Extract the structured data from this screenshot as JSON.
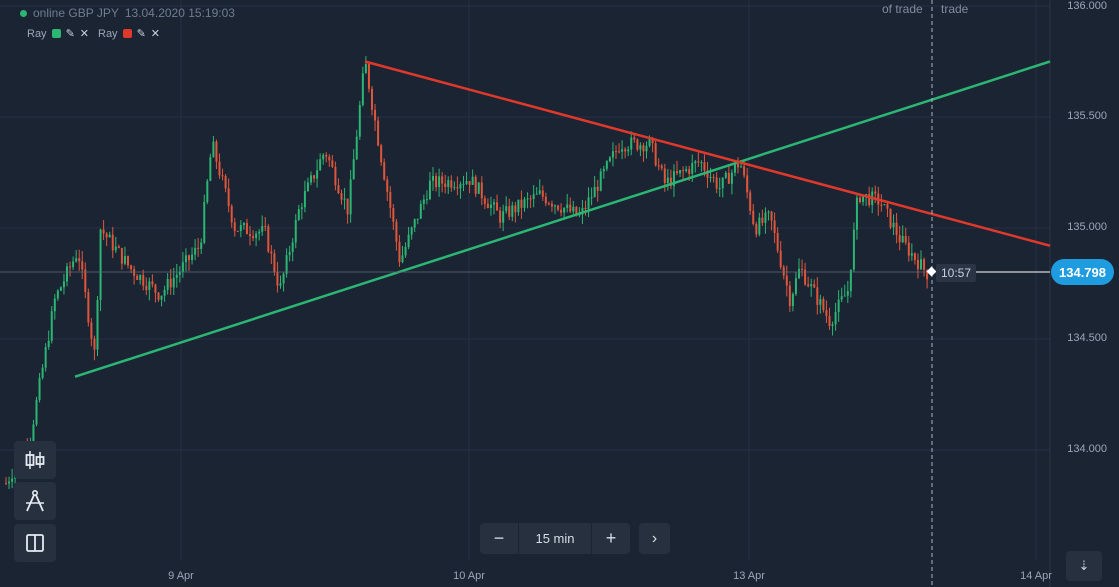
{
  "header": {
    "asset": "online GBP JPY",
    "datetime": "13.04.2020 15:19:03"
  },
  "drawings": [
    {
      "label": "Ray",
      "color": "#2bb673"
    },
    {
      "label": "Ray",
      "color": "#e0392b"
    }
  ],
  "trade_labels": {
    "left": "of trade",
    "right": "trade"
  },
  "y_axis": {
    "ticks": [
      "136.000",
      "135.500",
      "135.000",
      "134.500",
      "134.000"
    ]
  },
  "x_axis": {
    "ticks": [
      "9 Apr",
      "10 Apr",
      "13 Apr",
      "14 Apr"
    ]
  },
  "timer": "10:57",
  "current_price": "134.798",
  "timeframe": {
    "label": "15 min",
    "minus": "−",
    "plus": "+",
    "next": "›"
  },
  "tools": [
    {
      "name": "candles-tool-icon"
    },
    {
      "name": "drawing-tool-icon"
    },
    {
      "name": "layout-tool-icon"
    }
  ],
  "collapse_icon": "⇣",
  "colors": {
    "up": "#2bb673",
    "down": "#e0563b",
    "accent": "#1f9be0"
  },
  "chart_data": {
    "type": "candlestick",
    "ylim": [
      133.8,
      136.0
    ],
    "price_path": [
      [
        0,
        133.8
      ],
      [
        30,
        134.05
      ],
      [
        55,
        134.68
      ],
      [
        78,
        134.9
      ],
      [
        95,
        134.42
      ],
      [
        100,
        135.0
      ],
      [
        130,
        134.82
      ],
      [
        160,
        134.7
      ],
      [
        200,
        134.92
      ],
      [
        212,
        135.38
      ],
      [
        235,
        135.0
      ],
      [
        265,
        134.98
      ],
      [
        280,
        134.72
      ],
      [
        300,
        135.1
      ],
      [
        325,
        135.35
      ],
      [
        348,
        135.08
      ],
      [
        365,
        135.75
      ],
      [
        380,
        135.35
      ],
      [
        400,
        134.85
      ],
      [
        430,
        135.2
      ],
      [
        470,
        135.22
      ],
      [
        500,
        135.05
      ],
      [
        540,
        135.15
      ],
      [
        580,
        135.05
      ],
      [
        620,
        135.38
      ],
      [
        650,
        135.38
      ],
      [
        665,
        135.2
      ],
      [
        700,
        135.3
      ],
      [
        720,
        135.18
      ],
      [
        740,
        135.3
      ],
      [
        755,
        135.0
      ],
      [
        770,
        135.05
      ],
      [
        790,
        134.68
      ],
      [
        800,
        134.82
      ],
      [
        830,
        134.58
      ],
      [
        848,
        134.72
      ],
      [
        858,
        135.15
      ],
      [
        880,
        135.12
      ],
      [
        900,
        134.95
      ],
      [
        930,
        134.78
      ]
    ],
    "rays": [
      {
        "color": "#2bb673",
        "from": [
          75,
          134.33
        ],
        "to": [
          1050,
          135.75
        ]
      },
      {
        "color": "#e0392b",
        "from": [
          365,
          135.75
        ],
        "to": [
          1050,
          134.92
        ]
      }
    ],
    "current_price": 134.798
  }
}
